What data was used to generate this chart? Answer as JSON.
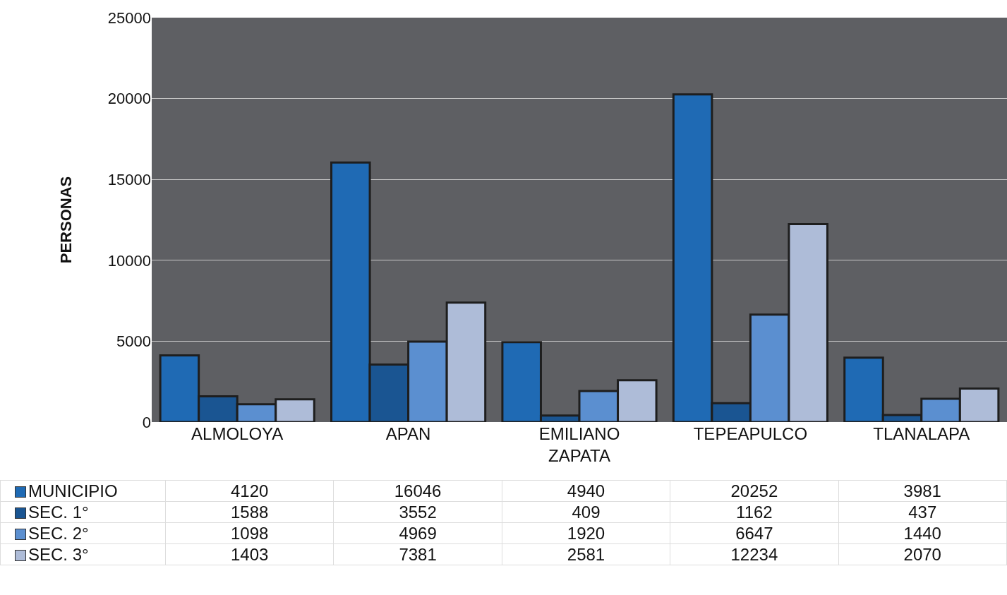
{
  "chart_data": {
    "type": "bar",
    "ylabel": "PERSONAS",
    "categories": [
      "ALMOLOYA",
      "APAN",
      "EMILIANO ZAPATA",
      "TEPEAPULCO",
      "TLANALAPA"
    ],
    "series": [
      {
        "name": "MUNICIPIO",
        "color": "#1f6ab4",
        "values": [
          4120,
          16046,
          4940,
          20252,
          3981
        ]
      },
      {
        "name": "SEC. 1°",
        "color": "#1a5592",
        "values": [
          1588,
          3552,
          409,
          1162,
          437
        ]
      },
      {
        "name": "SEC. 2°",
        "color": "#5b8fd0",
        "values": [
          1098,
          4969,
          1920,
          6647,
          1440
        ]
      },
      {
        "name": "SEC. 3°",
        "color": "#aebcd8",
        "values": [
          1403,
          7381,
          2581,
          12234,
          2070
        ]
      }
    ],
    "ylim": [
      0,
      25000
    ],
    "yticks": [
      0,
      5000,
      10000,
      15000,
      20000,
      25000
    ],
    "grid": "y",
    "legend": "bottom",
    "data_labels": true
  }
}
